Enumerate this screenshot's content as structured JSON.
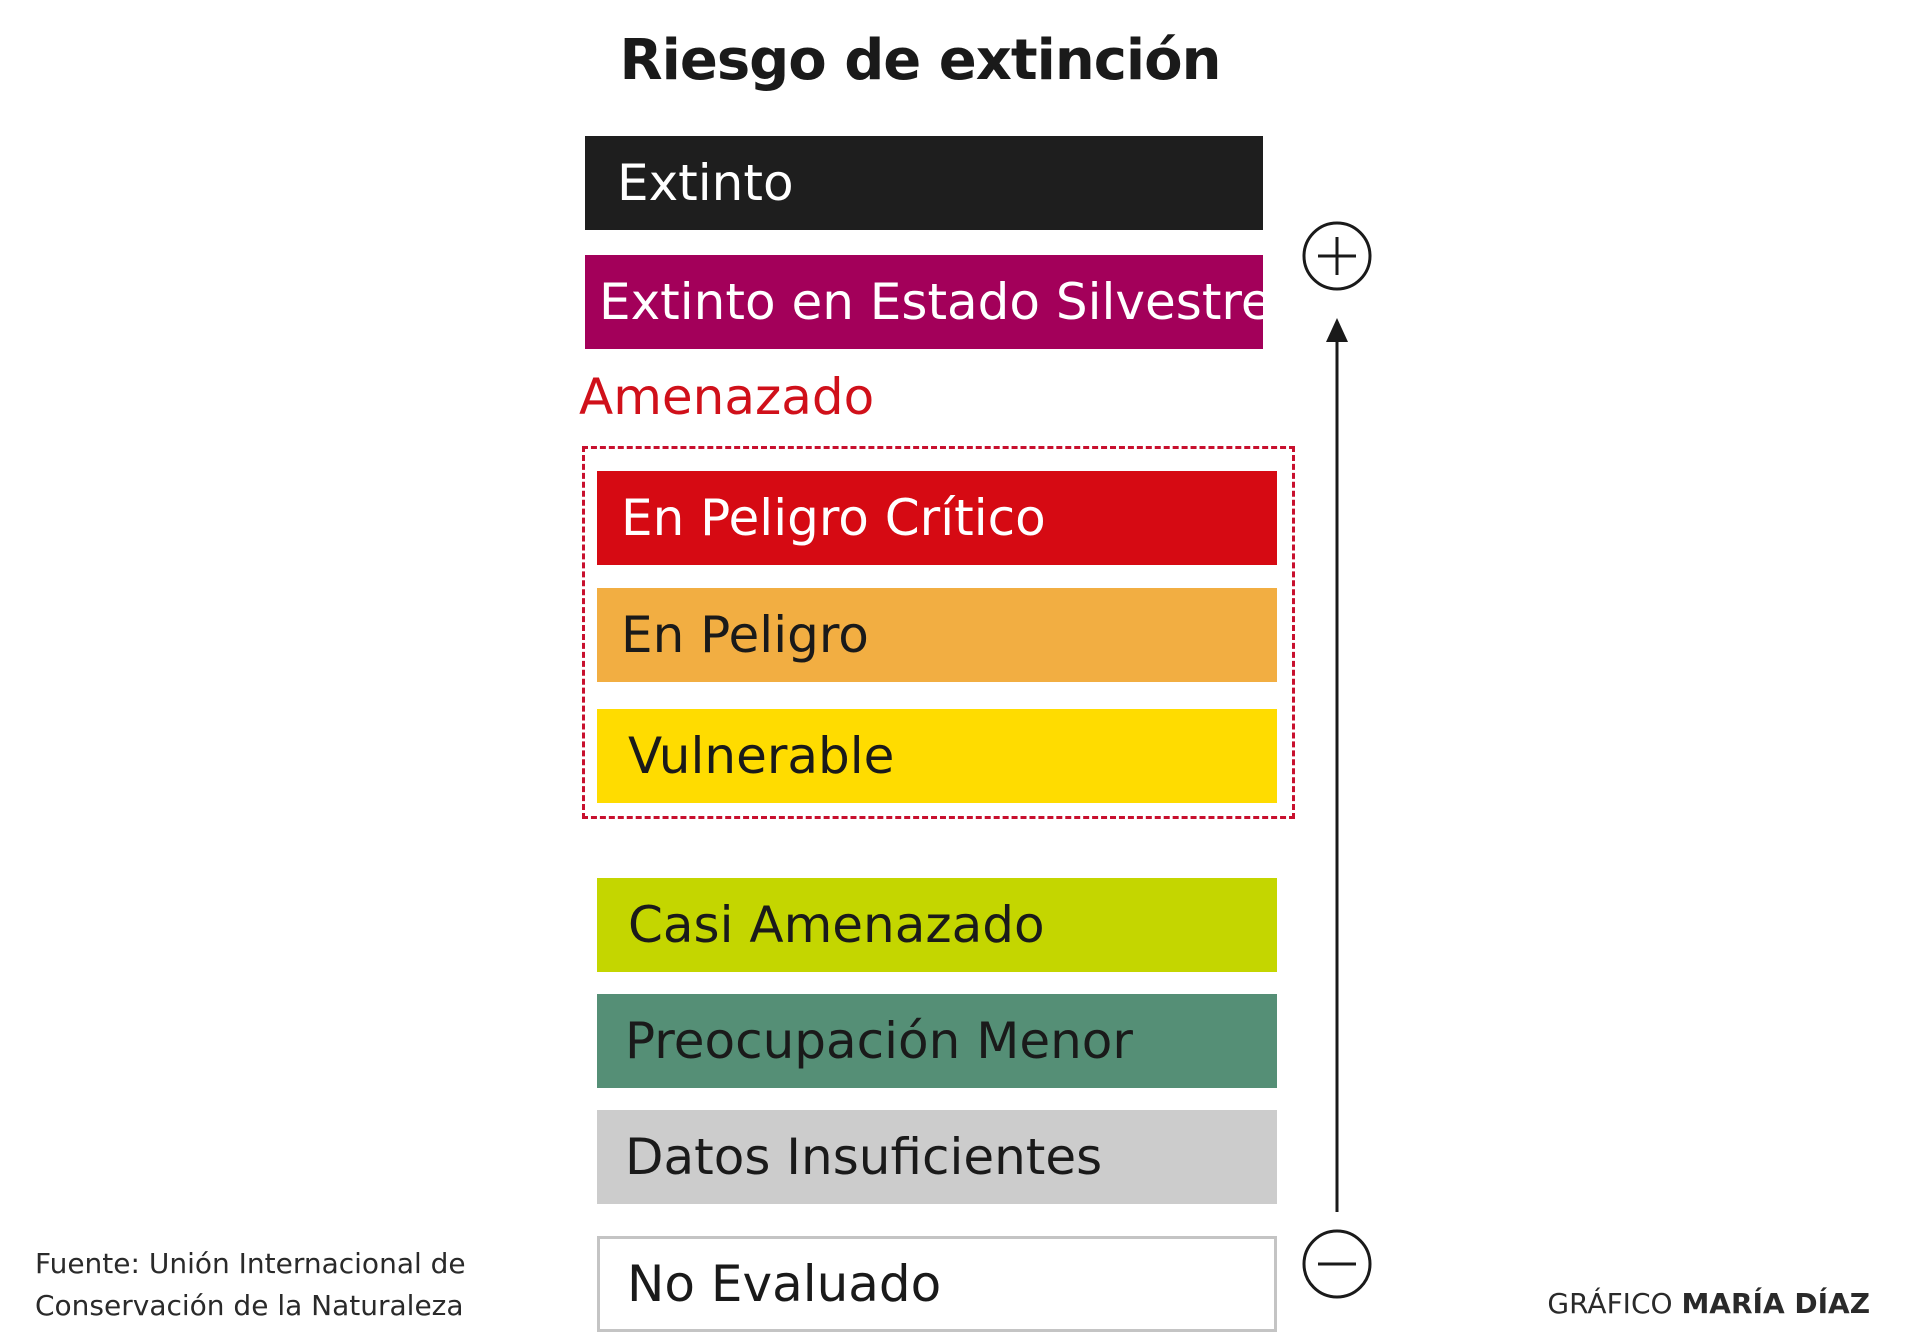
{
  "title": "Riesgo de extinción",
  "categories": [
    {
      "key": "ex",
      "label": "Extinto",
      "color": "#1e1e1e",
      "text_color": "#ffffff"
    },
    {
      "key": "ew",
      "label": "Extinto en Estado Silvestre",
      "color": "#a3005a",
      "text_color": "#ffffff"
    },
    {
      "key": "cr",
      "label": "En Peligro Crítico",
      "color": "#d60a13",
      "text_color": "#ffffff"
    },
    {
      "key": "en",
      "label": "En Peligro",
      "color": "#f2ae42",
      "text_color": "#1a1a1a"
    },
    {
      "key": "vu",
      "label": "Vulnerable",
      "color": "#ffdc00",
      "text_color": "#1a1a1a"
    },
    {
      "key": "nt",
      "label": "Casi Amenazado",
      "color": "#c4d600",
      "text_color": "#1a1a1a"
    },
    {
      "key": "lc",
      "label": "Preocupación Menor",
      "color": "#558f76",
      "text_color": "#1a1a1a"
    },
    {
      "key": "dd",
      "label": "Datos Insuficientes",
      "color": "#cccccc",
      "text_color": "#1a1a1a"
    },
    {
      "key": "ne",
      "label": "No Evaluado",
      "color": "#ffffff",
      "text_color": "#1a1a1a"
    }
  ],
  "group": {
    "label": "Amenazado",
    "color": "#d0101a"
  },
  "scale": {
    "top_icon": "plus-circle-icon",
    "bottom_icon": "minus-circle-icon",
    "arrow_icon": "arrow-up-icon"
  },
  "source": {
    "line1": "Fuente: Unión Internacional de",
    "line2": "Conservación de la Naturaleza"
  },
  "credit": {
    "prefix": "GRÁFICO",
    "name": "MARÍA DÍAZ"
  }
}
